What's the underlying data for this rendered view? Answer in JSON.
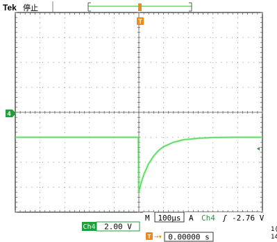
{
  "header": {
    "brand": "Tek",
    "run_state": "停止"
  },
  "markers": {
    "trigger_position": "T",
    "channel_ground": "4"
  },
  "readout": {
    "timebase_prefix": "M",
    "timebase": "100µs",
    "trigger_prefix": "A",
    "trigger_source": "Ch4",
    "trigger_slope_symbol": "ʃ",
    "trigger_level": "-2.76 V",
    "channel_label": "Ch4",
    "channel_scale": "2.00 V",
    "trigger_offset_prefix": "T→▾",
    "trigger_offset": "0.00000 s",
    "edge_clip_1": "1(",
    "edge_clip_2": "14"
  },
  "colors": {
    "trace": "#7ee87e",
    "channel_fill": "#1f9e3a",
    "trigger_marker": "#f08a16",
    "grid": "#6e6e6e"
  },
  "chart_data": {
    "type": "line",
    "title": "",
    "xlabel": "",
    "ylabel": "",
    "x_unit": "µs",
    "y_unit": "V",
    "xlim": [
      -500,
      500
    ],
    "ylim": [
      -6,
      10
    ],
    "series": [
      {
        "name": "Ch4",
        "x": [
          -500,
          -300,
          -100,
          -40,
          -2,
          0,
          2,
          10,
          20,
          40,
          60,
          80,
          100,
          140,
          180,
          240,
          300,
          380,
          450,
          500
        ],
        "y": [
          0,
          0,
          0,
          0,
          0,
          -4.4,
          -4.2,
          -3.6,
          -3.0,
          -2.1,
          -1.5,
          -1.05,
          -0.75,
          -0.4,
          -0.2,
          -0.08,
          -0.02,
          0,
          0,
          0
        ]
      }
    ]
  }
}
